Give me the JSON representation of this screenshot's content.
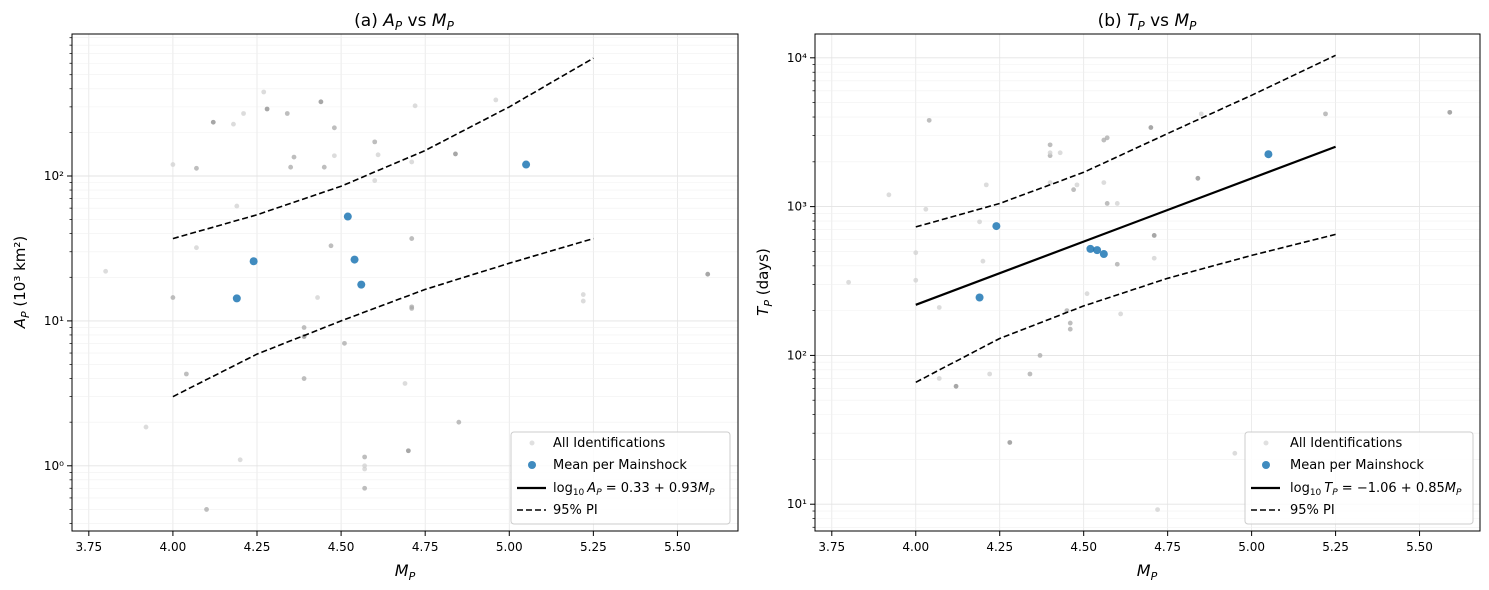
{
  "chart_data": [
    {
      "type": "scatter",
      "title": "(a) A_P vs M_P",
      "title_main": "A",
      "title_sub": "P",
      "title_vs": " vs ",
      "title_main2": "M",
      "title_prefix": "(a) ",
      "xlabel_main": "M",
      "xlabel_sub": "P",
      "ylabel_main": "A",
      "ylabel_sub": "P",
      "ylabel_unit": " (10³ km²)",
      "xlim": [
        3.7,
        5.68
      ],
      "ylim_log10": [
        -0.45,
        2.98
      ],
      "yscale": "log",
      "xticks": [
        3.75,
        4.0,
        4.25,
        4.5,
        4.75,
        5.0,
        5.25,
        5.5
      ],
      "xtick_labels": [
        "3.75",
        "4.00",
        "4.25",
        "4.50",
        "4.75",
        "5.00",
        "5.25",
        "5.50"
      ],
      "yticks_log10": [
        0,
        1,
        2
      ],
      "ytick_labels": [
        "10⁰",
        "10¹",
        "10²"
      ],
      "grid": true,
      "legend_position": "lower-right",
      "legend": {
        "all_label": "All Identifications",
        "mean_label": "Mean per Mainshock",
        "fit_label": "log₁₀ A_P = 0.33 + 0.93M_P",
        "fit_label_lhs": "log",
        "fit_label_sub10": "10",
        "fit_label_var": "A",
        "fit_label_varsub": "P",
        "fit_label_rhs": " = 0.33 + 0.93",
        "fit_label_m": "M",
        "fit_label_msub": "P",
        "pi_label": "95% PI"
      },
      "fit": {
        "intercept": 0.33,
        "slope": 0.93,
        "x_range": [
          4.0,
          5.25
        ]
      },
      "pi_lower": {
        "x": [
          4.0,
          4.25,
          4.5,
          4.75,
          5.0,
          5.25
        ],
        "y": [
          3.0,
          5.9,
          10.0,
          16.5,
          25.0,
          37.0
        ]
      },
      "pi_upper": {
        "x": [
          4.0,
          4.25,
          4.5,
          4.75,
          5.0,
          5.25
        ],
        "y": [
          37.0,
          54.0,
          85.0,
          150.0,
          300.0,
          650.0
        ]
      },
      "all_identifications": {
        "x": [
          3.8,
          3.92,
          4.0,
          4.0,
          4.04,
          4.07,
          4.07,
          4.1,
          4.12,
          4.18,
          4.19,
          4.2,
          4.21,
          4.27,
          4.28,
          4.34,
          4.35,
          4.36,
          4.39,
          4.39,
          4.39,
          4.43,
          4.44,
          4.45,
          4.47,
          4.48,
          4.48,
          4.51,
          4.6,
          4.6,
          4.61,
          4.57,
          4.57,
          4.57,
          4.57,
          4.69,
          4.7,
          4.71,
          4.71,
          4.71,
          4.71,
          4.72,
          4.84,
          4.85,
          4.96,
          5.22,
          5.22,
          5.59
        ],
        "y": [
          22,
          1.85,
          120,
          14.5,
          4.3,
          113,
          32,
          0.5,
          235,
          228,
          62,
          1.1,
          270,
          380,
          290,
          270,
          115,
          135,
          9,
          7.8,
          4.0,
          14.5,
          325,
          115,
          33,
          138,
          215,
          7.0,
          93,
          172,
          140,
          1.15,
          1.0,
          0.95,
          0.7,
          3.7,
          1.27,
          37,
          12.2,
          12.5,
          125,
          305,
          142,
          2.0,
          335,
          13.7,
          15.2,
          21
        ],
        "shade": [
          "l",
          "l",
          "l",
          "m",
          "m",
          "m",
          "l",
          "m",
          "d",
          "l",
          "l",
          "l",
          "l",
          "l",
          "d",
          "m",
          "m",
          "m",
          "m",
          "d",
          "m",
          "l",
          "d",
          "m",
          "m",
          "l",
          "m",
          "m",
          "l",
          "m",
          "l",
          "m",
          "l",
          "l",
          "m",
          "l",
          "d",
          "m",
          "m",
          "m",
          "l",
          "l",
          "d",
          "m",
          "l",
          "l",
          "l",
          "d"
        ]
      },
      "means": {
        "x": [
          4.19,
          4.24,
          4.52,
          4.54,
          4.56,
          5.05
        ],
        "y": [
          14.3,
          25.8,
          52.5,
          26.5,
          17.8,
          120
        ]
      }
    },
    {
      "type": "scatter",
      "title": "(b) T_P vs M_P",
      "title_main": "T",
      "title_sub": "P",
      "title_vs": " vs ",
      "title_main2": "M",
      "title_prefix": "(b) ",
      "xlabel_main": "M",
      "xlabel_sub": "P",
      "ylabel_main": "T",
      "ylabel_sub": "P",
      "ylabel_unit": " (days)",
      "xlim": [
        3.7,
        5.68
      ],
      "ylim_log10": [
        0.82,
        4.16
      ],
      "yscale": "log",
      "xticks": [
        3.75,
        4.0,
        4.25,
        4.5,
        4.75,
        5.0,
        5.25,
        5.5
      ],
      "xtick_labels": [
        "3.75",
        "4.00",
        "4.25",
        "4.50",
        "4.75",
        "5.00",
        "5.25",
        "5.50"
      ],
      "yticks_log10": [
        1,
        2,
        3,
        4
      ],
      "ytick_labels": [
        "10¹",
        "10²",
        "10³",
        "10⁴"
      ],
      "grid": true,
      "legend_position": "lower-right",
      "legend": {
        "all_label": "All Identifications",
        "mean_label": "Mean per Mainshock",
        "fit_label": "log₁₀ T_P = −1.06 + 0.85M_P",
        "fit_label_lhs": "log",
        "fit_label_sub10": "10",
        "fit_label_var": "T",
        "fit_label_varsub": "P",
        "fit_label_rhs": " = −1.06 + 0.85",
        "fit_label_m": "M",
        "fit_label_msub": "P",
        "pi_label": "95% PI"
      },
      "fit": {
        "intercept": -1.06,
        "slope": 0.85,
        "x_range": [
          4.0,
          5.25
        ]
      },
      "pi_lower": {
        "x": [
          4.0,
          4.25,
          4.5,
          4.75,
          5.0,
          5.25
        ],
        "y": [
          66,
          130,
          215,
          330,
          470,
          650
        ]
      },
      "pi_upper": {
        "x": [
          4.0,
          4.25,
          4.5,
          4.75,
          5.0,
          5.25
        ],
        "y": [
          730,
          1050,
          1700,
          3100,
          5600,
          10400
        ]
      },
      "all_identifications": {
        "x": [
          3.8,
          3.92,
          4.0,
          4.0,
          4.03,
          4.04,
          4.07,
          4.07,
          4.12,
          4.19,
          4.2,
          4.21,
          4.22,
          4.28,
          4.34,
          4.37,
          4.4,
          4.4,
          4.4,
          4.4,
          4.43,
          4.45,
          4.46,
          4.46,
          4.47,
          4.48,
          4.51,
          4.56,
          4.56,
          4.57,
          4.57,
          4.6,
          4.6,
          4.61,
          4.7,
          4.71,
          4.71,
          4.72,
          4.84,
          4.85,
          4.95,
          5.22,
          5.59
        ],
        "y": [
          310,
          1200,
          490,
          320,
          960,
          3800,
          210,
          70,
          62,
          790,
          430,
          1400,
          75,
          26,
          75,
          100,
          2600,
          2200,
          2300,
          1450,
          2300,
          200,
          165,
          150,
          1300,
          1400,
          260,
          1450,
          2800,
          2900,
          1050,
          410,
          1050,
          190,
          3400,
          640,
          450,
          9.2,
          1550,
          4200,
          22,
          4200,
          4300
        ],
        "shade": [
          "l",
          "l",
          "l",
          "l",
          "l",
          "m",
          "l",
          "l",
          "d",
          "l",
          "l",
          "l",
          "l",
          "d",
          "m",
          "m",
          "m",
          "m",
          "l",
          "l",
          "l",
          "m",
          "m",
          "m",
          "m",
          "l",
          "l",
          "l",
          "m",
          "m",
          "m",
          "m",
          "l",
          "l",
          "d",
          "d",
          "l",
          "l",
          "d",
          "l",
          "l",
          "m",
          "d"
        ]
      },
      "means": {
        "x": [
          4.19,
          4.24,
          4.52,
          4.54,
          4.56,
          5.05
        ],
        "y": [
          245,
          740,
          520,
          510,
          480,
          2250
        ]
      }
    }
  ]
}
